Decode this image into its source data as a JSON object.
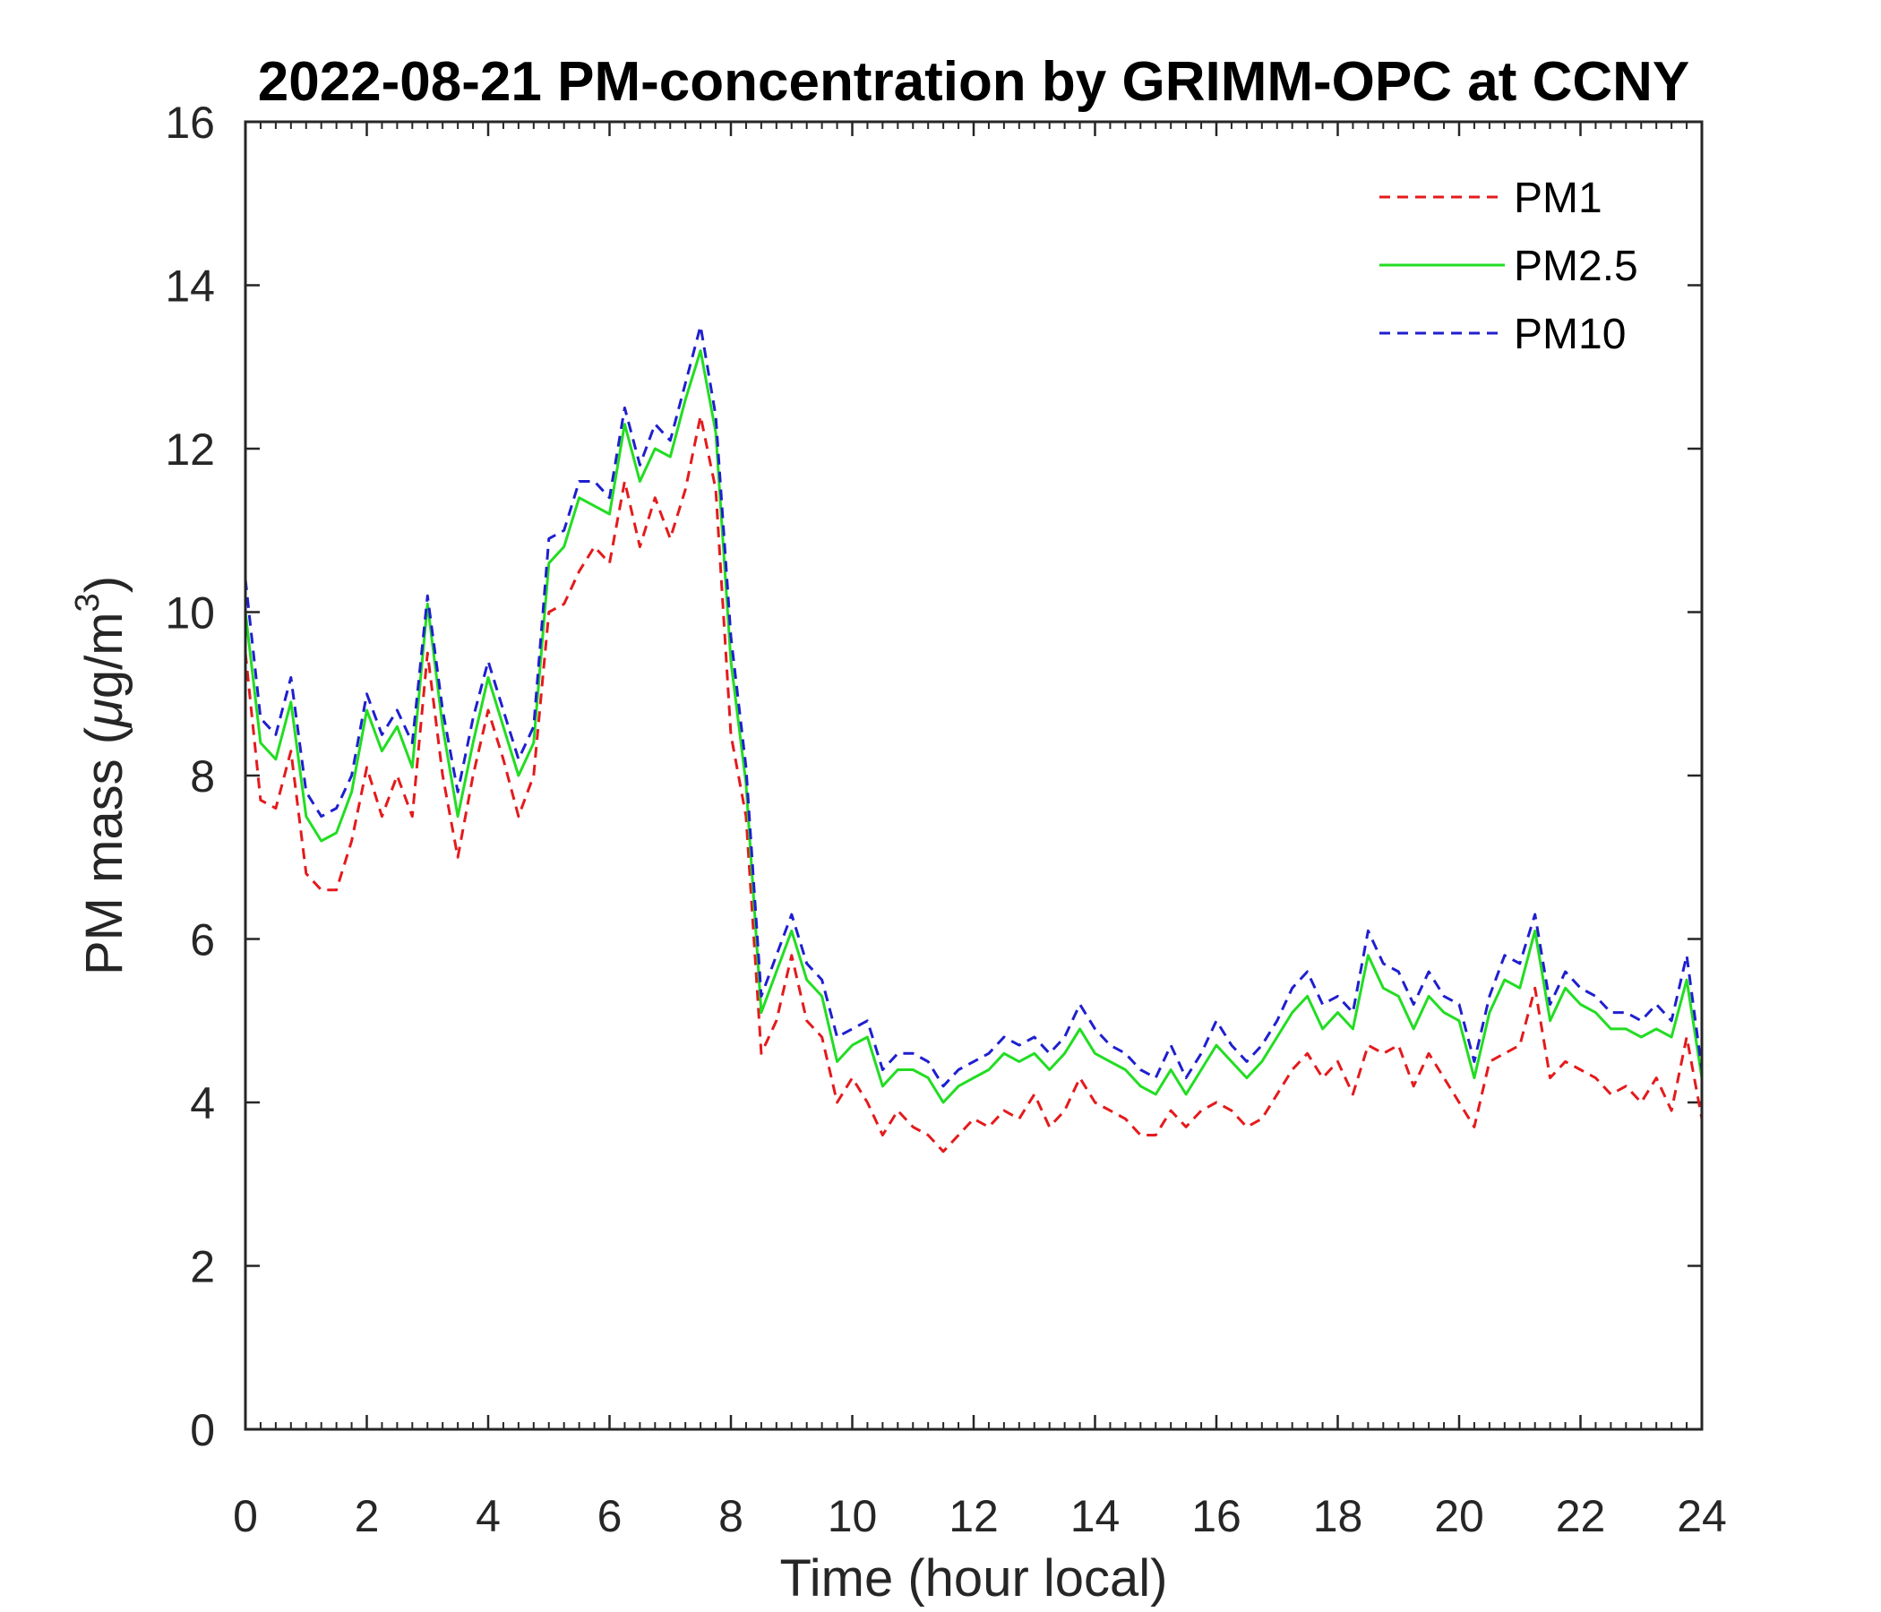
{
  "chart_data": {
    "type": "line",
    "title": "2022-08-21 PM-concentration by GRIMM-OPC at CCNY",
    "xlabel": "Time (hour local)",
    "ylabel_prefix": "PM mass (",
    "ylabel_mu": "μ",
    "ylabel_unit": "g/m",
    "ylabel_exp": "3",
    "ylabel_suffix": ")",
    "xlim": [
      0,
      24
    ],
    "ylim": [
      0,
      16
    ],
    "xticks": [
      "0",
      "2",
      "4",
      "6",
      "8",
      "10",
      "12",
      "14",
      "16",
      "18",
      "20",
      "22",
      "24"
    ],
    "yticks": [
      "0",
      "2",
      "4",
      "6",
      "8",
      "10",
      "12",
      "14",
      "16"
    ],
    "legend_position": "top-right",
    "x": [
      0,
      0.25,
      0.5,
      0.75,
      1,
      1.25,
      1.5,
      1.75,
      2,
      2.25,
      2.5,
      2.75,
      3,
      3.25,
      3.5,
      3.75,
      4,
      4.25,
      4.5,
      4.75,
      5,
      5.25,
      5.5,
      5.75,
      6,
      6.25,
      6.5,
      6.75,
      7,
      7.25,
      7.5,
      7.75,
      8,
      8.25,
      8.5,
      8.75,
      9,
      9.25,
      9.5,
      9.75,
      10,
      10.25,
      10.5,
      10.75,
      11,
      11.25,
      11.5,
      11.75,
      12,
      12.25,
      12.5,
      12.75,
      13,
      13.25,
      13.5,
      13.75,
      14,
      14.25,
      14.5,
      14.75,
      15,
      15.25,
      15.5,
      15.75,
      16,
      16.25,
      16.5,
      16.75,
      17,
      17.25,
      17.5,
      17.75,
      18,
      18.25,
      18.5,
      18.75,
      19,
      19.25,
      19.5,
      19.75,
      20,
      20.25,
      20.5,
      20.75,
      21,
      21.25,
      21.5,
      21.75,
      22,
      22.25,
      22.5,
      22.75,
      23,
      23.25,
      23.5,
      23.75,
      24
    ],
    "series": [
      {
        "name": "PM1",
        "color": "#e41a1c",
        "style": "dashed",
        "values": [
          9.5,
          7.7,
          7.6,
          8.3,
          6.8,
          6.6,
          6.6,
          7.2,
          8.1,
          7.5,
          8.0,
          7.5,
          9.5,
          8.0,
          7.0,
          8.0,
          8.8,
          8.2,
          7.5,
          8.0,
          10.0,
          10.1,
          10.5,
          10.8,
          10.6,
          11.6,
          10.8,
          11.4,
          10.9,
          11.5,
          12.4,
          11.5,
          8.5,
          7.5,
          4.6,
          5.0,
          5.8,
          5.0,
          4.8,
          4.0,
          4.3,
          4.0,
          3.6,
          3.9,
          3.7,
          3.6,
          3.4,
          3.6,
          3.8,
          3.7,
          3.9,
          3.8,
          4.1,
          3.7,
          3.9,
          4.3,
          4.0,
          3.9,
          3.8,
          3.6,
          3.6,
          3.9,
          3.7,
          3.9,
          4.0,
          3.9,
          3.7,
          3.8,
          4.1,
          4.4,
          4.6,
          4.3,
          4.5,
          4.1,
          4.7,
          4.6,
          4.7,
          4.2,
          4.6,
          4.3,
          4.0,
          3.7,
          4.5,
          4.6,
          4.7,
          5.4,
          4.3,
          4.5,
          4.4,
          4.3,
          4.1,
          4.2,
          4.0,
          4.3,
          3.9,
          4.8,
          3.8
        ]
      },
      {
        "name": "PM2.5",
        "color": "#22dd22",
        "style": "solid",
        "values": [
          10.0,
          8.4,
          8.2,
          8.9,
          7.5,
          7.2,
          7.3,
          7.8,
          8.8,
          8.3,
          8.6,
          8.1,
          10.1,
          8.6,
          7.5,
          8.4,
          9.2,
          8.6,
          8.0,
          8.4,
          10.6,
          10.8,
          11.4,
          11.3,
          11.2,
          12.3,
          11.6,
          12.0,
          11.9,
          12.6,
          13.2,
          12.2,
          9.4,
          7.9,
          5.1,
          5.6,
          6.1,
          5.5,
          5.3,
          4.5,
          4.7,
          4.8,
          4.2,
          4.4,
          4.4,
          4.3,
          4.0,
          4.2,
          4.3,
          4.4,
          4.6,
          4.5,
          4.6,
          4.4,
          4.6,
          4.9,
          4.6,
          4.5,
          4.4,
          4.2,
          4.1,
          4.4,
          4.1,
          4.4,
          4.7,
          4.5,
          4.3,
          4.5,
          4.8,
          5.1,
          5.3,
          4.9,
          5.1,
          4.9,
          5.8,
          5.4,
          5.3,
          4.9,
          5.3,
          5.1,
          5.0,
          4.3,
          5.1,
          5.5,
          5.4,
          6.1,
          5.0,
          5.4,
          5.2,
          5.1,
          4.9,
          4.9,
          4.8,
          4.9,
          4.8,
          5.5,
          4.3
        ]
      },
      {
        "name": "PM10",
        "color": "#1f1fcf",
        "style": "dashed",
        "values": [
          10.4,
          8.7,
          8.5,
          9.2,
          7.8,
          7.5,
          7.6,
          8.0,
          9.0,
          8.5,
          8.8,
          8.4,
          10.2,
          8.8,
          7.8,
          8.7,
          9.4,
          8.8,
          8.2,
          8.6,
          10.9,
          11.0,
          11.6,
          11.6,
          11.4,
          12.5,
          11.8,
          12.3,
          12.1,
          12.8,
          13.5,
          12.4,
          9.7,
          8.1,
          5.3,
          5.8,
          6.3,
          5.7,
          5.5,
          4.8,
          4.9,
          5.0,
          4.4,
          4.6,
          4.6,
          4.5,
          4.2,
          4.4,
          4.5,
          4.6,
          4.8,
          4.7,
          4.8,
          4.6,
          4.8,
          5.2,
          4.9,
          4.7,
          4.6,
          4.4,
          4.3,
          4.7,
          4.3,
          4.6,
          5.0,
          4.7,
          4.5,
          4.7,
          5.0,
          5.4,
          5.6,
          5.2,
          5.3,
          5.1,
          6.1,
          5.7,
          5.6,
          5.2,
          5.6,
          5.3,
          5.2,
          4.5,
          5.3,
          5.8,
          5.7,
          6.3,
          5.2,
          5.6,
          5.4,
          5.3,
          5.1,
          5.1,
          5.0,
          5.2,
          5.0,
          5.8,
          4.4
        ]
      }
    ]
  }
}
